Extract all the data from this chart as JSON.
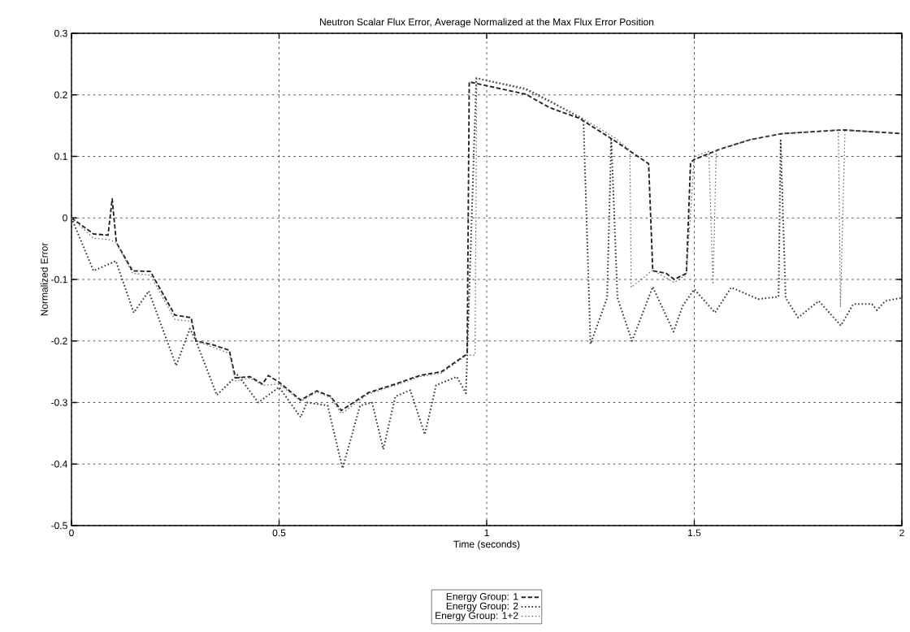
{
  "chart_data": {
    "type": "line",
    "title": "Neutron Scalar Flux Error, Average Normalized at the Max Flux Error Position",
    "xlabel": "Time (seconds)",
    "ylabel": "Normalized Error",
    "xlim": [
      0,
      2
    ],
    "ylim": [
      -0.5,
      0.3
    ],
    "xticks": [
      0,
      0.5,
      1,
      1.5,
      2
    ],
    "yticks": [
      -0.5,
      -0.4,
      -0.3,
      -0.2,
      -0.1,
      0,
      0.1,
      0.2,
      0.3
    ],
    "grid": true,
    "legend": "bottom",
    "marker": "none",
    "series": [
      {
        "name": "Energy Group: 1",
        "color": "#222222",
        "line_style": "dashed",
        "x": [
          0,
          0.053,
          0.088,
          0.098,
          0.108,
          0.147,
          0.19,
          0.249,
          0.288,
          0.3,
          0.34,
          0.38,
          0.395,
          0.43,
          0.46,
          0.474,
          0.5,
          0.552,
          0.591,
          0.624,
          0.65,
          0.715,
          0.78,
          0.839,
          0.891,
          0.953,
          0.958,
          1.094,
          1.152,
          1.223,
          1.309,
          1.39,
          1.4,
          1.432,
          1.452,
          1.481,
          1.491,
          1.5,
          1.563,
          1.634,
          1.712,
          1.857,
          2
        ],
        "values": [
          0,
          -0.026,
          -0.028,
          0.031,
          -0.04,
          -0.086,
          -0.087,
          -0.158,
          -0.162,
          -0.2,
          -0.206,
          -0.215,
          -0.26,
          -0.258,
          -0.27,
          -0.256,
          -0.267,
          -0.296,
          -0.281,
          -0.29,
          -0.313,
          -0.284,
          -0.27,
          -0.256,
          -0.25,
          -0.221,
          0.221,
          0.201,
          0.179,
          0.162,
          0.125,
          0.088,
          -0.086,
          -0.09,
          -0.1,
          -0.09,
          0.09,
          0.095,
          0.112,
          0.127,
          0.137,
          0.143,
          0.137
        ]
      },
      {
        "name": "Energy Group: 2",
        "color": "#333333",
        "line_style": "dotted",
        "x": [
          0,
          0.053,
          0.107,
          0.15,
          0.186,
          0.252,
          0.285,
          0.3,
          0.35,
          0.4,
          0.45,
          0.5,
          0.552,
          0.567,
          0.617,
          0.653,
          0.695,
          0.724,
          0.751,
          0.78,
          0.816,
          0.851,
          0.878,
          0.928,
          0.95,
          0.975,
          1.094,
          1.152,
          1.22,
          1.233,
          1.25,
          1.29,
          1.3,
          1.315,
          1.35,
          1.4,
          1.45,
          1.472,
          1.5,
          1.55,
          1.589,
          1.654,
          1.703,
          1.708,
          1.72,
          1.75,
          1.8,
          1.853,
          1.883,
          1.928,
          1.94,
          1.96,
          2
        ],
        "values": [
          0,
          -0.086,
          -0.07,
          -0.154,
          -0.119,
          -0.24,
          -0.18,
          -0.2,
          -0.288,
          -0.255,
          -0.3,
          -0.275,
          -0.324,
          -0.3,
          -0.305,
          -0.407,
          -0.305,
          -0.3,
          -0.376,
          -0.29,
          -0.28,
          -0.352,
          -0.272,
          -0.258,
          -0.285,
          0.227,
          0.21,
          0.19,
          0.165,
          0.16,
          -0.205,
          -0.13,
          0.13,
          -0.13,
          -0.2,
          -0.112,
          -0.185,
          -0.143,
          -0.116,
          -0.154,
          -0.113,
          -0.132,
          -0.128,
          0.126,
          -0.13,
          -0.162,
          -0.135,
          -0.175,
          -0.14,
          -0.14,
          -0.15,
          -0.135,
          -0.13
        ]
      },
      {
        "name": "Energy Group: 1+2",
        "color": "#666666",
        "line_style": "dotted",
        "x": [
          0,
          0.053,
          0.088,
          0.108,
          0.147,
          0.19,
          0.249,
          0.288,
          0.3,
          0.34,
          0.38,
          0.395,
          0.43,
          0.46,
          0.5,
          0.552,
          0.591,
          0.624,
          0.65,
          0.715,
          0.78,
          0.839,
          0.891,
          0.953,
          0.972,
          0.976,
          1.094,
          1.152,
          1.223,
          1.309,
          1.345,
          1.348,
          1.4,
          1.452,
          1.481,
          1.5,
          1.535,
          1.545,
          1.553,
          1.634,
          1.712,
          1.847,
          1.852,
          1.863,
          2
        ],
        "values": [
          0,
          -0.033,
          -0.035,
          -0.04,
          -0.09,
          -0.093,
          -0.165,
          -0.168,
          -0.2,
          -0.21,
          -0.22,
          -0.265,
          -0.26,
          -0.272,
          -0.27,
          -0.298,
          -0.283,
          -0.292,
          -0.318,
          -0.286,
          -0.272,
          -0.258,
          -0.252,
          -0.223,
          -0.223,
          0.227,
          0.208,
          0.188,
          0.165,
          0.13,
          0.11,
          -0.113,
          -0.085,
          -0.105,
          -0.092,
          0.1,
          0.108,
          -0.108,
          0.11,
          0.127,
          0.137,
          0.143,
          -0.145,
          0.143,
          0.137
        ]
      }
    ]
  }
}
